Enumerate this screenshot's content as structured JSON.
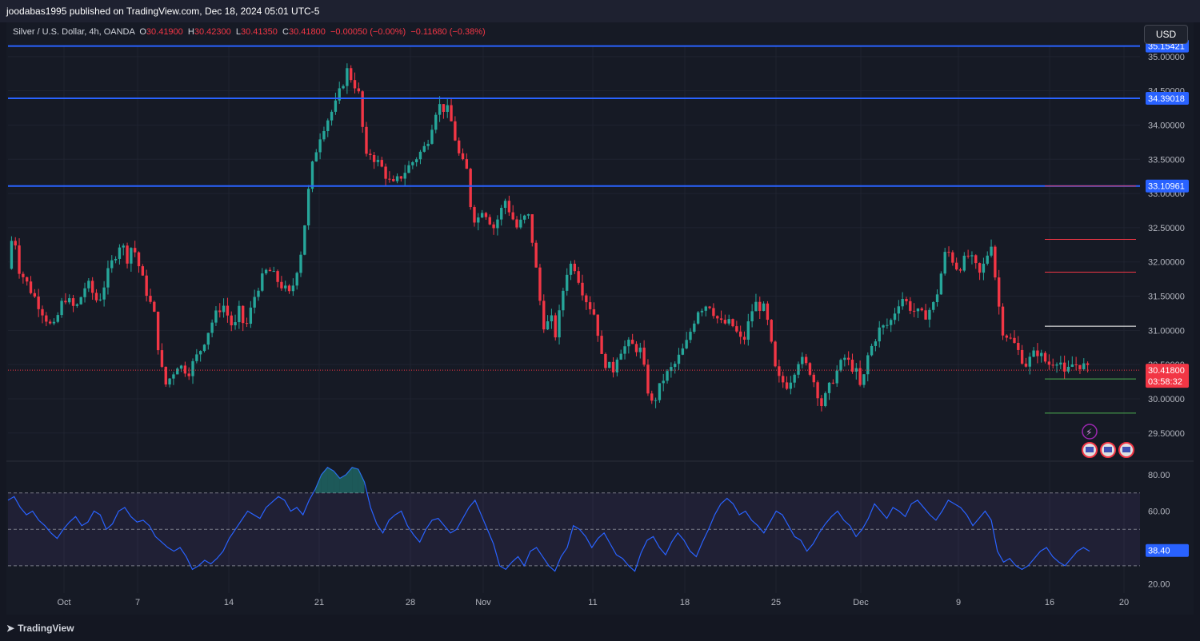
{
  "publisher": "joodabas1995 published on TradingView.com, Dec 18, 2024 05:01 UTC-5",
  "legend": {
    "symbol": "Silver / U.S. Dollar, 4h, OANDA",
    "o_label": "O",
    "o_value": "30.41900",
    "h_label": "H",
    "h_value": "30.42300",
    "l_label": "L",
    "l_value": "30.41350",
    "c_label": "C",
    "c_value": "30.41800",
    "change": "−0.00050 (−0.00%)",
    "change2": "−0.11680 (−0.38%)"
  },
  "currency_button": "USD",
  "footer": {
    "brand": "TradingView"
  },
  "colors": {
    "up": "#26a69a",
    "down": "#f23645",
    "level": "#2962ff",
    "rsi": "#2962ff",
    "target_red": "#f23645",
    "target_white": "#ffffff",
    "target_green": "#4caf50"
  },
  "chart_data": [
    {
      "type": "candlestick",
      "title": "Silver / U.S. Dollar, 4h, OANDA",
      "x_tick_labels": [
        "Oct",
        "7",
        "14",
        "21",
        "28",
        "Nov",
        "11",
        "18",
        "25",
        "Dec",
        "9",
        "16",
        "20"
      ],
      "y_tick_labels": [
        "35.00000",
        "34.50000",
        "34.00000",
        "33.50000",
        "33.00000",
        "32.50000",
        "32.00000",
        "31.50000",
        "31.00000",
        "30.50000",
        "30.00000",
        "29.50000"
      ],
      "y_ticks": [
        35.0,
        34.5,
        34.0,
        33.5,
        33.0,
        32.5,
        32.0,
        31.5,
        31.0,
        30.5,
        30.0,
        29.5
      ],
      "ylim": [
        29.1,
        35.15
      ],
      "price_path": [
        {
          "x": 0,
          "y": 31.9
        },
        {
          "x": 0.5,
          "y": 32.5
        },
        {
          "x": 1,
          "y": 31.9
        },
        {
          "x": 2,
          "y": 31.6
        },
        {
          "x": 3,
          "y": 31.3
        },
        {
          "x": 4,
          "y": 31.0
        },
        {
          "x": 5,
          "y": 31.5
        },
        {
          "x": 6,
          "y": 31.3
        },
        {
          "x": 7,
          "y": 31.7
        },
        {
          "x": 8,
          "y": 31.4
        },
        {
          "x": 9,
          "y": 31.9
        },
        {
          "x": 10,
          "y": 32.3
        },
        {
          "x": 10.7,
          "y": 32.0
        },
        {
          "x": 11,
          "y": 32.3
        },
        {
          "x": 12,
          "y": 31.7
        },
        {
          "x": 13,
          "y": 31.2
        },
        {
          "x": 13.5,
          "y": 30.5
        },
        {
          "x": 14,
          "y": 30.2
        },
        {
          "x": 15,
          "y": 30.5
        },
        {
          "x": 16,
          "y": 30.4
        },
        {
          "x": 17,
          "y": 30.7
        },
        {
          "x": 18,
          "y": 31.1
        },
        {
          "x": 19,
          "y": 31.4
        },
        {
          "x": 19.5,
          "y": 31.2
        },
        {
          "x": 20,
          "y": 31.0
        },
        {
          "x": 20.5,
          "y": 31.3
        },
        {
          "x": 21,
          "y": 31.0
        },
        {
          "x": 22,
          "y": 31.6
        },
        {
          "x": 23,
          "y": 31.9
        },
        {
          "x": 24,
          "y": 31.7
        },
        {
          "x": 25,
          "y": 31.5
        },
        {
          "x": 26,
          "y": 32.2
        },
        {
          "x": 26.8,
          "y": 33.3
        },
        {
          "x": 27.5,
          "y": 33.8
        },
        {
          "x": 28,
          "y": 34.0
        },
        {
          "x": 29,
          "y": 34.3
        },
        {
          "x": 30,
          "y": 34.8
        },
        {
          "x": 31,
          "y": 34.5
        },
        {
          "x": 31.7,
          "y": 33.5
        },
        {
          "x": 32,
          "y": 33.6
        },
        {
          "x": 33,
          "y": 33.4
        },
        {
          "x": 34,
          "y": 33.1
        },
        {
          "x": 35,
          "y": 33.3
        },
        {
          "x": 36,
          "y": 33.5
        },
        {
          "x": 37,
          "y": 33.7
        },
        {
          "x": 38,
          "y": 34.3
        },
        {
          "x": 39,
          "y": 34.2
        },
        {
          "x": 40,
          "y": 33.5
        },
        {
          "x": 40.7,
          "y": 33.3
        },
        {
          "x": 41,
          "y": 32.7
        },
        {
          "x": 41.5,
          "y": 32.6
        },
        {
          "x": 42,
          "y": 32.8
        },
        {
          "x": 43,
          "y": 32.5
        },
        {
          "x": 44,
          "y": 32.9
        },
        {
          "x": 45,
          "y": 32.5
        },
        {
          "x": 46,
          "y": 32.7
        },
        {
          "x": 46.5,
          "y": 32.2
        },
        {
          "x": 47,
          "y": 31.5
        },
        {
          "x": 47.5,
          "y": 31.0
        },
        {
          "x": 48,
          "y": 31.2
        },
        {
          "x": 48.5,
          "y": 30.9
        },
        {
          "x": 49,
          "y": 31.5
        },
        {
          "x": 49.5,
          "y": 31.9
        },
        {
          "x": 50,
          "y": 32.0
        },
        {
          "x": 51,
          "y": 31.5
        },
        {
          "x": 52,
          "y": 31.2
        },
        {
          "x": 52.5,
          "y": 30.6
        },
        {
          "x": 53,
          "y": 30.5
        },
        {
          "x": 53.5,
          "y": 30.4
        },
        {
          "x": 54,
          "y": 30.7
        },
        {
          "x": 55,
          "y": 30.8
        },
        {
          "x": 56,
          "y": 30.7
        },
        {
          "x": 56.5,
          "y": 30.2
        },
        {
          "x": 57,
          "y": 29.9
        },
        {
          "x": 58,
          "y": 30.3
        },
        {
          "x": 59,
          "y": 30.5
        },
        {
          "x": 60,
          "y": 30.8
        },
        {
          "x": 61,
          "y": 31.3
        },
        {
          "x": 62,
          "y": 31.4
        },
        {
          "x": 63,
          "y": 31.1
        },
        {
          "x": 64,
          "y": 31.1
        },
        {
          "x": 65,
          "y": 30.8
        },
        {
          "x": 66,
          "y": 31.4
        },
        {
          "x": 67,
          "y": 31.3
        },
        {
          "x": 67.5,
          "y": 30.8
        },
        {
          "x": 68,
          "y": 30.3
        },
        {
          "x": 69,
          "y": 30.2
        },
        {
          "x": 70,
          "y": 30.6
        },
        {
          "x": 71,
          "y": 30.4
        },
        {
          "x": 72,
          "y": 29.9
        },
        {
          "x": 73,
          "y": 30.3
        },
        {
          "x": 74,
          "y": 30.6
        },
        {
          "x": 75,
          "y": 30.4
        },
        {
          "x": 75.5,
          "y": 30.1
        },
        {
          "x": 76,
          "y": 30.6
        },
        {
          "x": 77,
          "y": 31.0
        },
        {
          "x": 78,
          "y": 31.1
        },
        {
          "x": 79,
          "y": 31.5
        },
        {
          "x": 80,
          "y": 31.3
        },
        {
          "x": 81,
          "y": 31.2
        },
        {
          "x": 82,
          "y": 31.4
        },
        {
          "x": 83,
          "y": 32.2
        },
        {
          "x": 84,
          "y": 31.9
        },
        {
          "x": 85,
          "y": 32.1
        },
        {
          "x": 86,
          "y": 31.8
        },
        {
          "x": 87,
          "y": 32.3
        },
        {
          "x": 87.5,
          "y": 31.5
        },
        {
          "x": 88,
          "y": 31.0
        },
        {
          "x": 89,
          "y": 30.8
        },
        {
          "x": 90,
          "y": 30.5
        },
        {
          "x": 91,
          "y": 30.7
        },
        {
          "x": 92,
          "y": 30.5
        },
        {
          "x": 93,
          "y": 30.6
        },
        {
          "x": 93.5,
          "y": 30.3
        },
        {
          "x": 94,
          "y": 30.5
        },
        {
          "x": 95,
          "y": 30.5
        },
        {
          "x": 95.5,
          "y": 30.42
        }
      ],
      "levels": [
        {
          "name": "resistance-1",
          "value": 35.15421,
          "label": "35.15421"
        },
        {
          "name": "resistance-2",
          "value": 34.39018,
          "label": "34.39018"
        },
        {
          "name": "resistance-3",
          "value": 33.10961,
          "label": "33.10961"
        }
      ],
      "targets": [
        {
          "value": 32.33,
          "color": "#f23645"
        },
        {
          "value": 31.85,
          "color": "#f23645"
        },
        {
          "value": 31.06,
          "color": "#ffffff"
        },
        {
          "value": 30.29,
          "color": "#4caf50"
        },
        {
          "value": 29.79,
          "color": "#4caf50"
        }
      ],
      "last_price": {
        "value": 30.418,
        "label": "30.41800",
        "countdown": "03:58:32"
      }
    },
    {
      "type": "line",
      "title": "RSI",
      "y_tick_labels": [
        "80.00",
        "60.00",
        "40.00",
        "20.00"
      ],
      "y_ticks": [
        80,
        60,
        40,
        20
      ],
      "ylim": [
        15,
        87
      ],
      "bands": [
        70,
        50,
        30
      ],
      "last_value": {
        "value": 38.4,
        "label": "38.40"
      },
      "series": [
        {
          "values": [
            66,
            68,
            62,
            58,
            60,
            55,
            52,
            48,
            45,
            50,
            54,
            57,
            52,
            54,
            60,
            58,
            50,
            53,
            60,
            62,
            57,
            54,
            55,
            52,
            46,
            43,
            40,
            38,
            40,
            35,
            28,
            30,
            33,
            31,
            34,
            38,
            45,
            50,
            55,
            60,
            58,
            56,
            62,
            65,
            68,
            66,
            60,
            62,
            58,
            66,
            72,
            80,
            84,
            82,
            78,
            80,
            84,
            83,
            76,
            62,
            53,
            48,
            55,
            58,
            60,
            52,
            47,
            43,
            50,
            55,
            56,
            52,
            48,
            50,
            56,
            62,
            66,
            58,
            50,
            42,
            30,
            28,
            32,
            35,
            30,
            38,
            40,
            35,
            30,
            27,
            35,
            40,
            52,
            50,
            46,
            40,
            45,
            48,
            42,
            36,
            34,
            30,
            27,
            37,
            44,
            46,
            40,
            36,
            43,
            48,
            44,
            38,
            35,
            43,
            50,
            58,
            64,
            67,
            64,
            58,
            60,
            55,
            52,
            48,
            54,
            60,
            58,
            52,
            46,
            44,
            38,
            42,
            48,
            53,
            57,
            60,
            55,
            52,
            46,
            50,
            56,
            64,
            60,
            56,
            62,
            60,
            57,
            64,
            66,
            62,
            58,
            55,
            60,
            66,
            64,
            62,
            58,
            52,
            56,
            60,
            55,
            38,
            32,
            34,
            30,
            28,
            30,
            34,
            38,
            40,
            35,
            32,
            30,
            34,
            38,
            40,
            38
          ]
        }
      ]
    }
  ]
}
